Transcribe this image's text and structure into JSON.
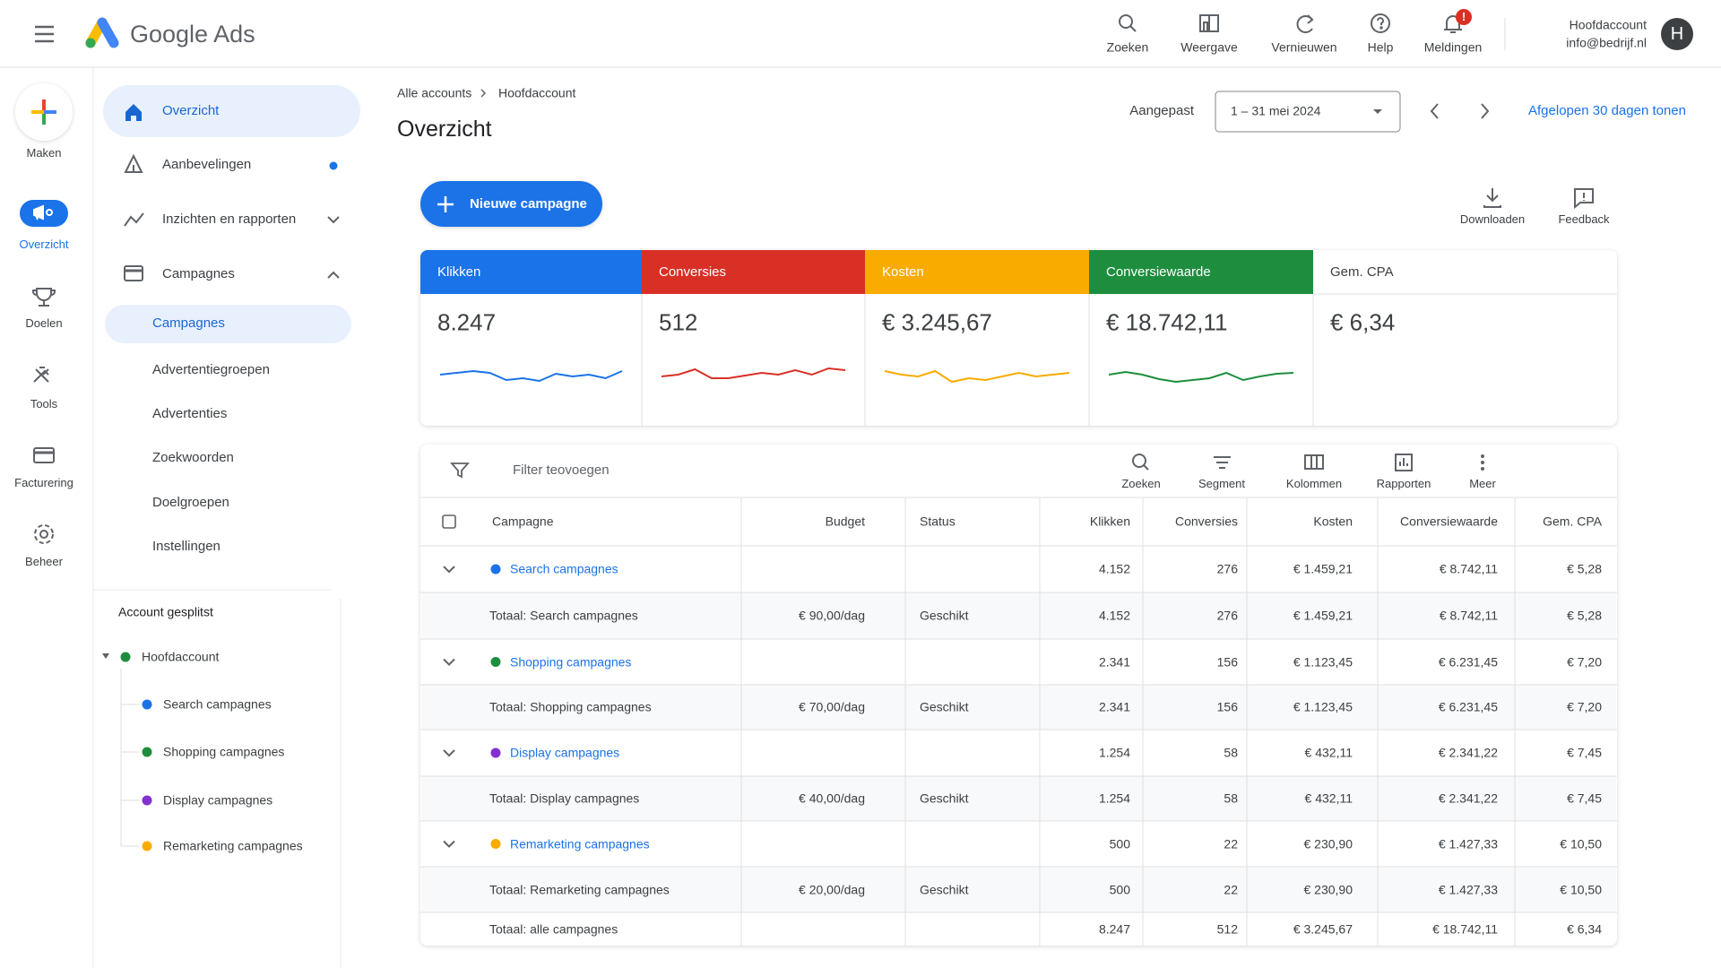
{
  "header": {
    "product": "Google Ads",
    "actions": [
      "Zoeken",
      "Weergave",
      "Vernieuwen",
      "Help",
      "Meldingen"
    ],
    "badge": "!",
    "account_name": "Hoofdaccount",
    "account_email": "info@bedrijf.nl",
    "avatar": "H"
  },
  "rail": [
    "Maken",
    "Overzicht",
    "Doelen",
    "Tools",
    "Facturering",
    "Beheer"
  ],
  "nav": [
    "Overzicht",
    "Aanbevelingen",
    "Inzichten en rapporten",
    "Campagnes"
  ],
  "subnav": [
    "Campagnes",
    "Advertentiegroepen",
    "Advertenties",
    "Zoekwoorden",
    "Doelgroepen",
    "Instellingen"
  ],
  "account_tree": {
    "title": "Account gesplitst",
    "root": "Hoofdaccount",
    "children": [
      {
        "label": "Search campagnes",
        "color": "#1a73e8"
      },
      {
        "label": "Shopping campagnes",
        "color": "#1e8e3e"
      },
      {
        "label": "Display campagnes",
        "color": "#8430ce"
      },
      {
        "label": "Remarketing campagnes",
        "color": "#f9ab00"
      }
    ]
  },
  "breadcrumb": [
    "Alle accounts",
    "Hoofdaccount"
  ],
  "page_title": "Overzicht",
  "date": {
    "label": "Aangepast",
    "range": "1 – 31 mei 2024",
    "link": "Afgelopen 30 dagen tonen"
  },
  "new_campaign": "Nieuwe campagne",
  "tools": [
    "Downloaden",
    "Feedback"
  ],
  "metrics": [
    {
      "label": "Klikken",
      "value": "8.247",
      "color": "#1a73e8"
    },
    {
      "label": "Conversies",
      "value": "512",
      "color": "#d93025"
    },
    {
      "label": "Kosten",
      "value": "€ 3.245,67",
      "color": "#f9ab00"
    },
    {
      "label": "Conversiewaarde",
      "value": "€ 18.742,11",
      "color": "#1e8e3e"
    },
    {
      "label": "Gem. CPA",
      "value": "€ 6,34"
    }
  ],
  "table": {
    "filter": "Filter teovoegen",
    "toolbar": [
      "Zoeken",
      "Segment",
      "Kolommen",
      "Rapporten",
      "Meer"
    ],
    "columns": [
      "Campagne",
      "Budget",
      "Status",
      "Klikken",
      "Conversies",
      "Kosten",
      "Conversiewaarde",
      "Gem. CPA"
    ],
    "rows": [
      {
        "color": "#1a73e8",
        "cells": [
          "Search campagnes",
          null,
          null,
          "4.152",
          "276",
          "€ 1.459,21",
          "€ 8.742,11",
          "€ 5,28"
        ]
      },
      {
        "cells": [
          "Totaal: Search campagnes",
          "€ 90,00/dag",
          "Geschikt",
          "4.152",
          "276",
          "€ 1.459,21",
          "€ 8.742,11",
          "€ 5,28"
        ]
      },
      {
        "color": "#1e8e3e",
        "cells": [
          "Shopping campagnes",
          null,
          null,
          "2.341",
          "156",
          "€ 1.123,45",
          "€ 6.231,45",
          "€ 7,20"
        ]
      },
      {
        "cells": [
          "Totaal: Shopping campagnes",
          "€ 70,00/dag",
          "Geschikt",
          "2.341",
          "156",
          "€ 1.123,45",
          "€ 6.231,45",
          "€ 7,20"
        ]
      },
      {
        "color": "#8430ce",
        "cells": [
          "Display campagnes",
          null,
          null,
          "1.254",
          "58",
          "€ 432,11",
          "€ 2.341,22",
          "€ 7,45"
        ]
      },
      {
        "cells": [
          "Totaal: Display campagnes",
          "€ 40,00/dag",
          "Geschikt",
          "1.254",
          "58",
          "€ 432,11",
          "€ 2.341,22",
          "€ 7,45"
        ]
      },
      {
        "color": "#f9ab00",
        "cells": [
          "Remarketing campagnes",
          null,
          null,
          "500",
          "22",
          "€ 230,90",
          "€ 1.427,33",
          "€ 10,50"
        ]
      },
      {
        "cells": [
          "Totaal: Remarketing campagnes",
          "€ 20,00/dag",
          "Geschikt",
          "500",
          "22",
          "€ 230,90",
          "€ 1.427,33",
          "€ 10,50"
        ]
      },
      {
        "cells": [
          "Totaal: alle campagnes",
          null,
          null,
          "8.247",
          "512",
          "€ 3.245,67",
          "€ 18.742,11",
          "€ 6,34"
        ]
      }
    ]
  }
}
